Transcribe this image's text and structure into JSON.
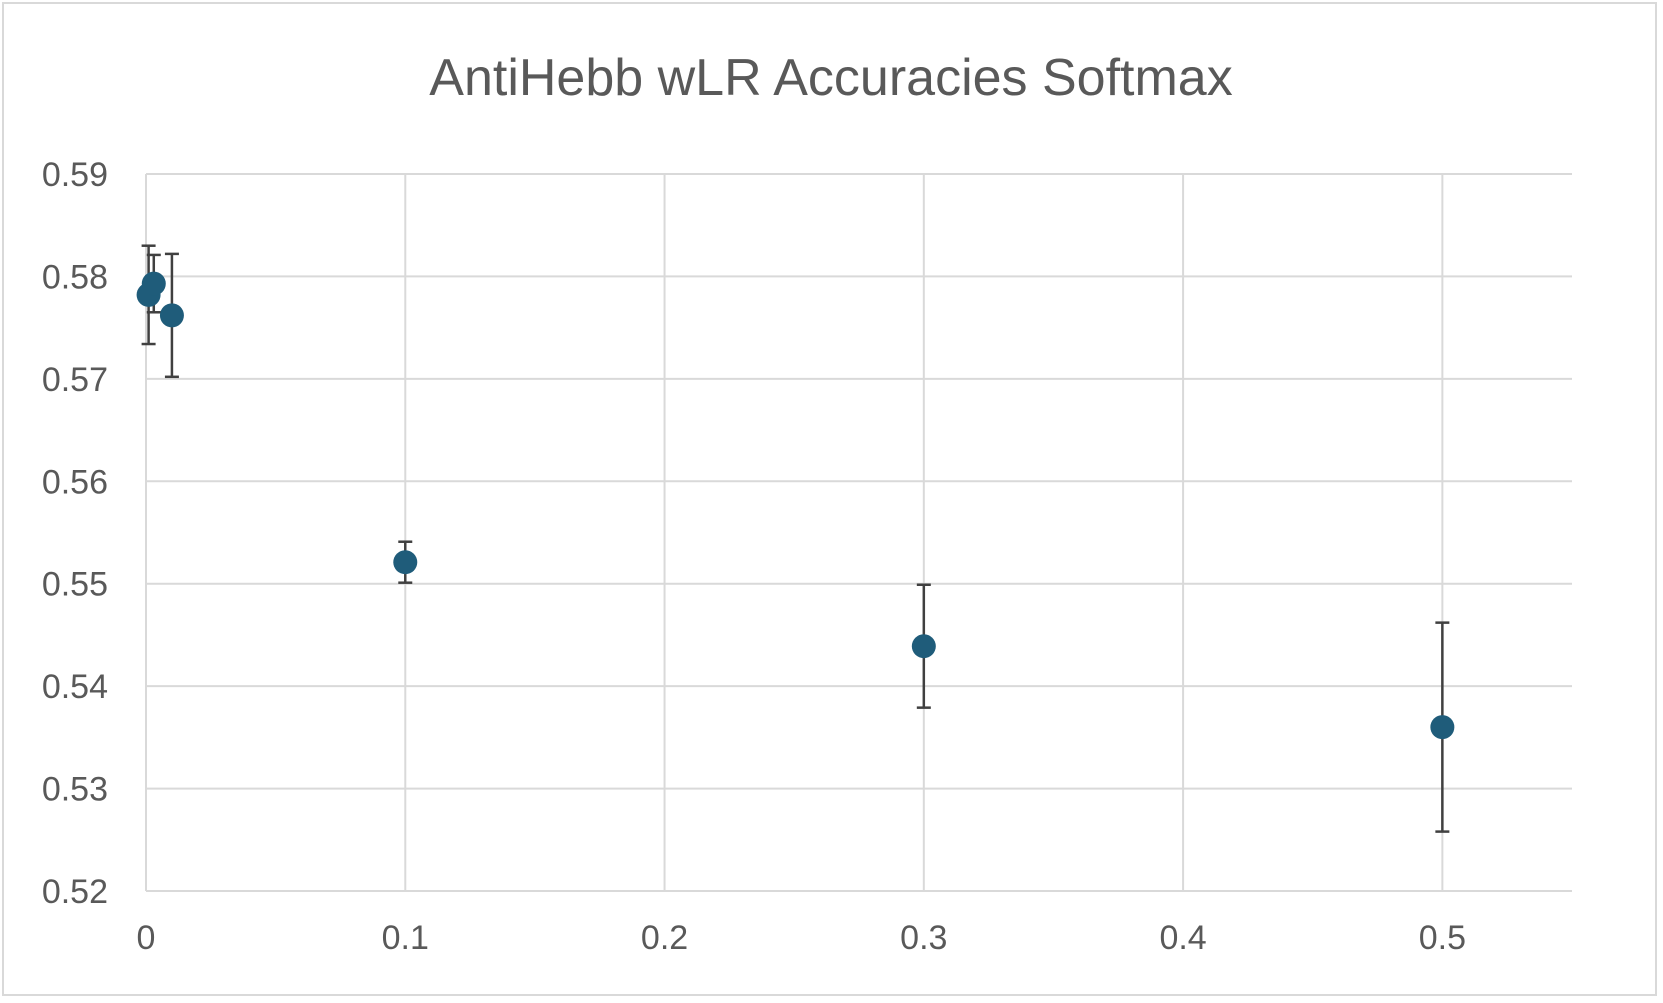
{
  "chart_data": {
    "type": "scatter",
    "title": "AntiHebb wLR Accuracies Softmax",
    "xlabel": "",
    "ylabel": "",
    "xlim": [
      0,
      0.55
    ],
    "ylim": [
      0.52,
      0.59
    ],
    "x_ticks": [
      0,
      0.1,
      0.2,
      0.3,
      0.4,
      0.5
    ],
    "x_tick_labels": [
      "0",
      "0.1",
      "0.2",
      "0.3",
      "0.4",
      "0.5"
    ],
    "y_ticks": [
      0.52,
      0.53,
      0.54,
      0.55,
      0.56,
      0.57,
      0.58,
      0.59
    ],
    "y_tick_labels": [
      "0.52",
      "0.53",
      "0.54",
      "0.55",
      "0.56",
      "0.57",
      "0.58",
      "0.59"
    ],
    "grid": true,
    "legend": "none",
    "marker_color": "#1f5c7a",
    "error_bar_color": "#404040",
    "series": [
      {
        "points": [
          {
            "x": 0.001,
            "y": 0.5782,
            "err_low": 0.0048,
            "err_high": 0.0048
          },
          {
            "x": 0.003,
            "y": 0.5793,
            "err_low": 0.0028,
            "err_high": 0.0028
          },
          {
            "x": 0.01,
            "y": 0.5762,
            "err_low": 0.006,
            "err_high": 0.006
          },
          {
            "x": 0.1,
            "y": 0.5521,
            "err_low": 0.002,
            "err_high": 0.002
          },
          {
            "x": 0.3,
            "y": 0.5439,
            "err_low": 0.006,
            "err_high": 0.006
          },
          {
            "x": 0.5,
            "y": 0.536,
            "err_low": 0.0102,
            "err_high": 0.0102
          }
        ]
      }
    ]
  }
}
